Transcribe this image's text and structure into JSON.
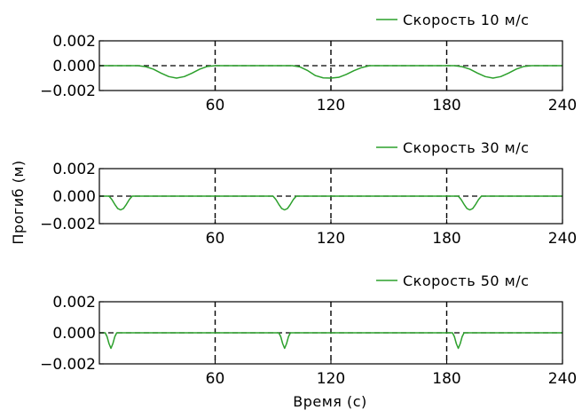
{
  "chart_data": [
    {
      "type": "line",
      "legend": {
        "label": "Скорость 10  м/с",
        "placement": "top-right"
      },
      "xlim": [
        0,
        240
      ],
      "ylim": [
        -0.002,
        0.002
      ],
      "xticks": [
        60,
        120,
        180,
        240
      ],
      "xtick_labels": [
        "60",
        "120",
        "180",
        "240"
      ],
      "yticks": [
        0.002,
        0.0,
        -0.002
      ],
      "ytick_labels": [
        "0.002",
        "0.000",
        "−0.002"
      ],
      "vlines": [
        60,
        120,
        180
      ],
      "reference_line": {
        "y": 0.0,
        "style": "dashed"
      },
      "series": [
        {
          "color": "#2ca02c",
          "x": [
            0,
            20,
            24,
            28,
            32,
            36,
            40,
            44,
            48,
            52,
            56,
            60,
            100,
            104,
            108,
            112,
            116,
            120,
            124,
            128,
            132,
            136,
            140,
            180,
            184,
            188,
            192,
            196,
            200,
            204,
            208,
            212,
            216,
            220,
            224,
            228,
            232,
            240
          ],
          "y": [
            0,
            0,
            -8e-05,
            -0.00028,
            -0.0006,
            -0.00088,
            -0.001,
            -0.00088,
            -0.0006,
            -0.00028,
            -6e-05,
            0,
            0,
            -0.0001,
            -0.0004,
            -0.0008,
            -0.00098,
            -0.001,
            -0.00094,
            -0.0007,
            -0.0004,
            -0.00015,
            0,
            0,
            0,
            -8e-05,
            -0.00028,
            -0.0006,
            -0.00088,
            -0.001,
            -0.00088,
            -0.0006,
            -0.00028,
            -6e-05,
            0,
            0,
            0,
            0
          ]
        }
      ]
    },
    {
      "type": "line",
      "legend": {
        "label": "Скорость 30  м/с",
        "placement": "top-right"
      },
      "xlim": [
        0,
        240
      ],
      "ylim": [
        -0.002,
        0.002
      ],
      "xticks": [
        60,
        120,
        180,
        240
      ],
      "xtick_labels": [
        "60",
        "120",
        "180",
        "240"
      ],
      "yticks": [
        0.002,
        0.0,
        -0.002
      ],
      "ytick_labels": [
        "0.002",
        "0.000",
        "−0.002"
      ],
      "vlines": [
        60,
        120,
        180
      ],
      "reference_line": {
        "y": 0.0,
        "style": "dashed"
      },
      "series": [
        {
          "color": "#2ca02c",
          "x": [
            0,
            5,
            6.5,
            8,
            9.5,
            11,
            12.5,
            14,
            15.5,
            17,
            90,
            91.5,
            93,
            94.5,
            96,
            97.5,
            99,
            100.5,
            102,
            186,
            187.5,
            189,
            190.5,
            192,
            193.5,
            195,
            196.5,
            198,
            240
          ],
          "y": [
            0,
            0,
            -0.00025,
            -0.0006,
            -0.0009,
            -0.001,
            -0.0009,
            -0.0006,
            -0.00025,
            0,
            0,
            -0.00025,
            -0.0006,
            -0.0009,
            -0.001,
            -0.0009,
            -0.0006,
            -0.00025,
            0,
            0,
            -0.00025,
            -0.0006,
            -0.0009,
            -0.001,
            -0.0009,
            -0.0006,
            -0.00025,
            0,
            0
          ]
        }
      ]
    },
    {
      "type": "line",
      "legend": {
        "label": "Скорость 50  м/с",
        "placement": "top-right"
      },
      "xlim": [
        0,
        240
      ],
      "ylim": [
        -0.002,
        0.002
      ],
      "xticks": [
        60,
        120,
        180,
        240
      ],
      "xtick_labels": [
        "60",
        "120",
        "180",
        "240"
      ],
      "yticks": [
        0.002,
        0.0,
        -0.002
      ],
      "ytick_labels": [
        "0.002",
        "0.000",
        "−0.002"
      ],
      "vlines": [
        60,
        120,
        180
      ],
      "reference_line": {
        "y": 0.0,
        "style": "dashed"
      },
      "series": [
        {
          "color": "#2ca02c",
          "x": [
            0,
            3,
            4,
            5,
            6,
            7,
            8,
            9,
            10,
            93,
            94,
            95,
            96,
            97,
            98,
            99,
            100,
            183,
            184,
            185,
            186,
            187,
            188,
            189,
            190,
            240
          ],
          "y": [
            0,
            0,
            -0.00025,
            -0.0007,
            -0.001,
            -0.0007,
            -0.00025,
            0,
            0,
            0,
            -0.00025,
            -0.0007,
            -0.001,
            -0.0007,
            -0.00025,
            0,
            0,
            0,
            -0.00025,
            -0.0007,
            -0.001,
            -0.0007,
            -0.00025,
            0,
            0,
            0
          ]
        }
      ]
    }
  ],
  "labels": {
    "xlabel": "Время (с)",
    "ylabel": "Прогиб (м)"
  }
}
